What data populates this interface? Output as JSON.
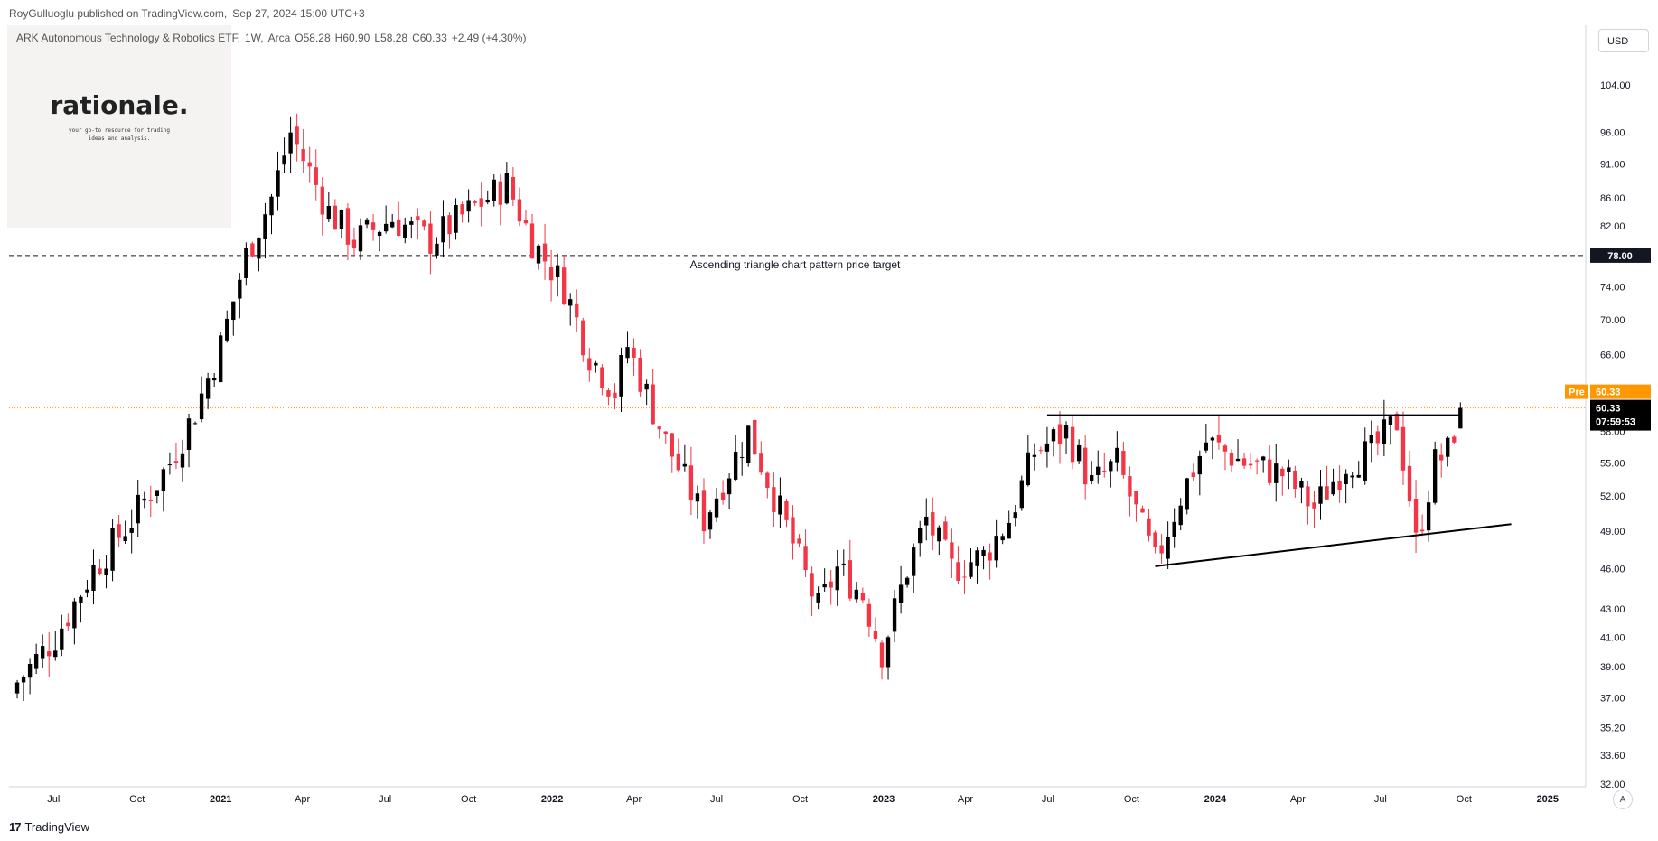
{
  "header": {
    "publisher": "RoyGulluoglu published on TradingView.com,",
    "date": "Sep 27, 2024 15:00 UTC+3"
  },
  "legend": {
    "symbol": "ARK Autonomous Technology & Robotics ETF,",
    "interval": "1W,",
    "exchange": "Arca",
    "open": "O58.28",
    "high": "H60.90",
    "low": "L58.28",
    "close": "C60.33",
    "change": "+2.49 (+4.30%)"
  },
  "logo": {
    "title": "rationale.",
    "subtitle": "your go-to resource for trading ideas and analysis."
  },
  "currency": "USD",
  "axis_mode_label": "A",
  "footer_brand": "TradingView",
  "footer_mark": "17",
  "chart_data": {
    "type": "candlestick",
    "y_scale": "log",
    "ylim": [
      32.0,
      110.0
    ],
    "y_ticks": [
      "104.00",
      "96.00",
      "91.00",
      "86.00",
      "82.00",
      "78.00",
      "74.00",
      "70.00",
      "66.00",
      "58.00",
      "55.00",
      "52.00",
      "49.00",
      "46.00",
      "43.00",
      "41.00",
      "39.00",
      "37.00",
      "35.20",
      "33.60",
      "32.00"
    ],
    "x_ticks": [
      {
        "label": "Jul",
        "year": false
      },
      {
        "label": "Oct",
        "year": false
      },
      {
        "label": "2021",
        "year": true
      },
      {
        "label": "Apr",
        "year": false
      },
      {
        "label": "Jul",
        "year": false
      },
      {
        "label": "Oct",
        "year": false
      },
      {
        "label": "2022",
        "year": true
      },
      {
        "label": "Apr",
        "year": false
      },
      {
        "label": "Jul",
        "year": false
      },
      {
        "label": "Oct",
        "year": false
      },
      {
        "label": "2023",
        "year": true
      },
      {
        "label": "Apr",
        "year": false
      },
      {
        "label": "Jul",
        "year": false
      },
      {
        "label": "Oct",
        "year": false
      },
      {
        "label": "2024",
        "year": true
      },
      {
        "label": "Apr",
        "year": false
      },
      {
        "label": "Jul",
        "year": false
      },
      {
        "label": "Oct",
        "year": false
      },
      {
        "label": "2025",
        "year": true
      }
    ],
    "key_closes": [
      [
        "2020-05-22",
        38.0
      ],
      [
        "2020-07-03",
        41.0
      ],
      [
        "2020-08-14",
        46.0
      ],
      [
        "2020-09-25",
        50.0
      ],
      [
        "2020-11-06",
        55.0
      ],
      [
        "2020-12-04",
        60.0
      ],
      [
        "2021-01-01",
        67.0
      ],
      [
        "2021-01-29",
        78.0
      ],
      [
        "2021-02-26",
        86.0
      ],
      [
        "2021-03-19",
        96.0
      ],
      [
        "2021-04-30",
        84.0
      ],
      [
        "2021-05-28",
        80.0
      ],
      [
        "2021-07-09",
        83.0
      ],
      [
        "2021-08-20",
        80.0
      ],
      [
        "2021-10-01",
        84.0
      ],
      [
        "2021-11-12",
        88.0
      ],
      [
        "2021-12-10",
        80.0
      ],
      [
        "2022-01-14",
        74.0
      ],
      [
        "2022-02-11",
        66.0
      ],
      [
        "2022-03-11",
        62.0
      ],
      [
        "2022-03-25",
        67.0
      ],
      [
        "2022-05-06",
        57.0
      ],
      [
        "2022-06-17",
        50.0
      ],
      [
        "2022-08-05",
        58.0
      ],
      [
        "2022-08-19",
        55.0
      ],
      [
        "2022-09-23",
        48.0
      ],
      [
        "2022-10-21",
        43.0
      ],
      [
        "2022-11-11",
        46.0
      ],
      [
        "2022-12-09",
        44.0
      ],
      [
        "2022-12-30",
        40.0
      ],
      [
        "2023-01-27",
        46.0
      ],
      [
        "2023-02-17",
        50.0
      ],
      [
        "2023-03-17",
        46.0
      ],
      [
        "2023-04-21",
        47.0
      ],
      [
        "2023-05-19",
        50.0
      ],
      [
        "2023-06-16",
        56.0
      ],
      [
        "2023-07-21",
        58.0
      ],
      [
        "2023-08-18",
        53.0
      ],
      [
        "2023-09-15",
        55.0
      ],
      [
        "2023-10-27",
        46.5
      ],
      [
        "2023-11-24",
        52.0
      ],
      [
        "2023-12-22",
        57.0
      ],
      [
        "2024-02-02",
        55.0
      ],
      [
        "2024-03-15",
        54.0
      ],
      [
        "2024-04-19",
        51.0
      ],
      [
        "2024-05-24",
        55.0
      ],
      [
        "2024-06-21",
        56.0
      ],
      [
        "2024-07-19",
        59.0
      ],
      [
        "2024-08-02",
        52.0
      ],
      [
        "2024-08-09",
        48.0
      ],
      [
        "2024-08-30",
        55.0
      ],
      [
        "2024-09-13",
        56.0
      ],
      [
        "2024-09-27",
        60.33
      ]
    ],
    "horizontal_lines": [
      {
        "price": 78.0,
        "style": "dashed",
        "label": "Ascending triangle chart pattern price target",
        "tag": "78.00"
      },
      {
        "price": 60.33,
        "style": "dotted",
        "color": "#ff9800"
      }
    ],
    "trendlines": [
      {
        "from": [
          "2023-06-30",
          59.6
        ],
        "to": [
          "2024-09-27",
          59.6
        ]
      },
      {
        "from": [
          "2023-10-27",
          46.2
        ],
        "to": [
          "2024-11-22",
          49.6
        ]
      }
    ],
    "price_tags": {
      "pre_label": "Pre",
      "pre_price": "60.33",
      "last_price": "60.33",
      "countdown": "07:59:53"
    },
    "colors": {
      "up": "#000000",
      "down": "#f23645",
      "pre": "#ff9800",
      "grid": "#e0e3eb"
    }
  }
}
